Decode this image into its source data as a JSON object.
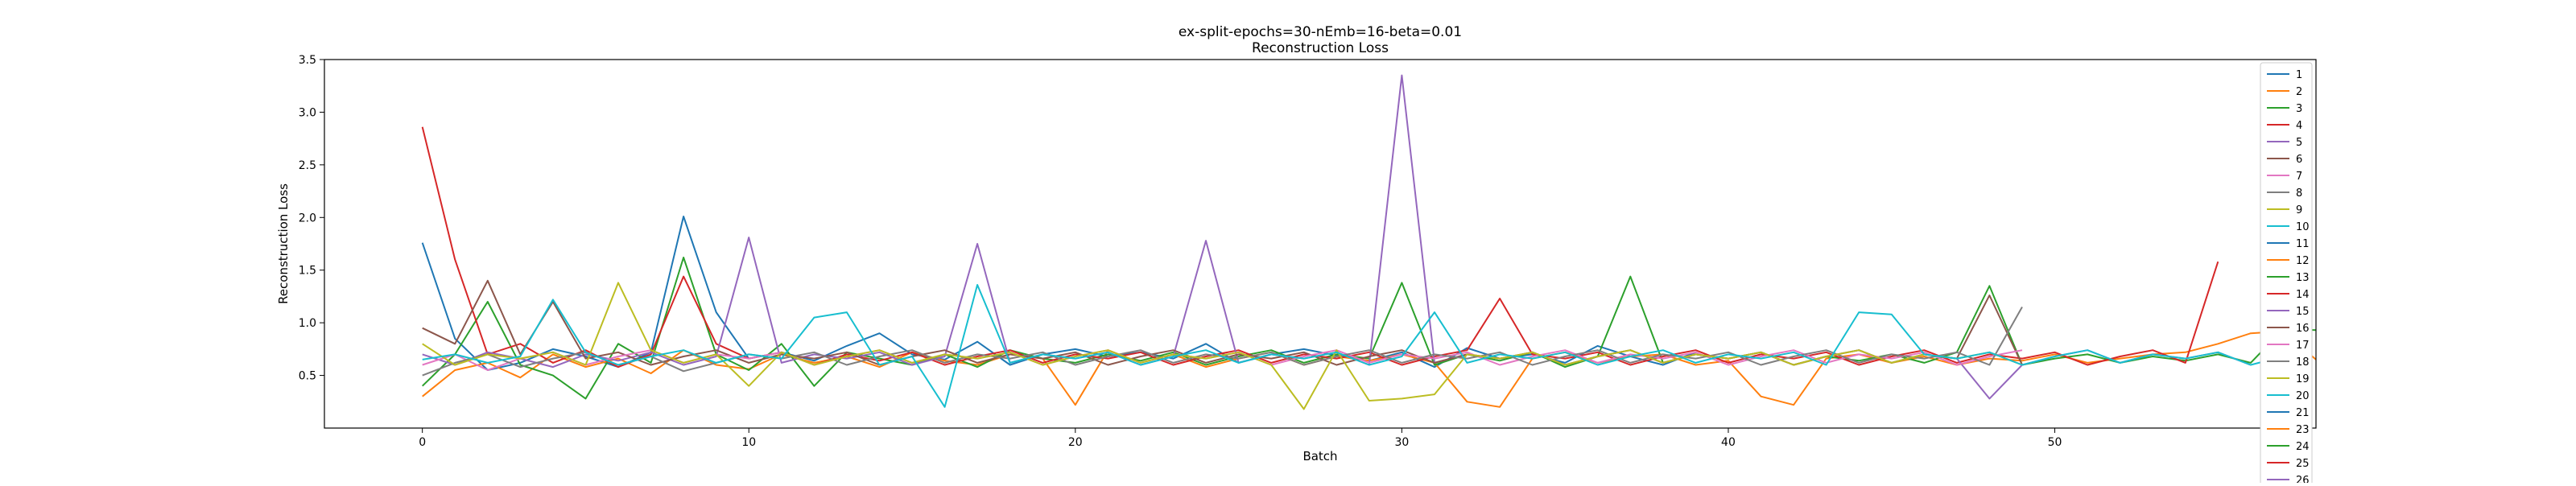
{
  "chart_data": {
    "type": "line",
    "title": "ex-split-epochs=30-nEmb=16-beta=0.01",
    "subtitle": "Reconstruction Loss",
    "xlabel": "Batch",
    "ylabel": "Reconstruction Loss",
    "xlim": [
      -3,
      58
    ],
    "ylim": [
      0.0,
      3.5
    ],
    "xticks": [
      0,
      10,
      20,
      30,
      40,
      50
    ],
    "yticks": [
      0.5,
      1.0,
      1.5,
      2.0,
      2.5,
      3.0,
      3.5
    ],
    "grid": false,
    "legend_position": "right",
    "series": [
      {
        "name": "1",
        "color": "#1f77b4",
        "values": [
          1.76,
          0.85,
          0.55,
          0.62,
          0.75,
          0.68,
          0.58,
          0.72,
          2.01,
          1.1,
          0.66,
          0.72,
          0.64,
          0.78,
          0.9,
          0.7,
          0.65,
          0.82,
          0.6,
          0.7,
          0.75,
          0.68,
          0.72,
          0.66,
          0.8,
          0.62,
          0.7,
          0.75,
          0.69,
          0.64,
          0.72,
          0.58,
          0.76,
          0.66,
          0.7,
          0.62,
          0.78,
          0.68,
          0.6,
          0.72
        ]
      },
      {
        "name": "2",
        "color": "#ff7f0e",
        "values": [
          0.3,
          0.55,
          0.62,
          0.48,
          0.7,
          0.58,
          0.66,
          0.52,
          0.74,
          0.6,
          0.56,
          0.7,
          0.62,
          0.68,
          0.58,
          0.72,
          0.64,
          0.6,
          0.7,
          0.66,
          0.22,
          0.74,
          0.62,
          0.7,
          0.58,
          0.66,
          0.72,
          0.6,
          0.68,
          0.64,
          0.7,
          0.62,
          0.25,
          0.2,
          0.66,
          0.72,
          0.62,
          0.68,
          0.7,
          0.6,
          0.64,
          0.3,
          0.22,
          0.66,
          0.7,
          0.62,
          0.68,
          0.6,
          0.66,
          0.64,
          0.7,
          0.62,
          0.66,
          0.7,
          0.72,
          0.8,
          0.9,
          0.92,
          0.65
        ]
      },
      {
        "name": "3",
        "color": "#2ca02c",
        "values": [
          0.4,
          0.7,
          1.2,
          0.6,
          0.5,
          0.28,
          0.8,
          0.62,
          1.62,
          0.7,
          0.55,
          0.8,
          0.4,
          0.72,
          0.66,
          0.6,
          0.7,
          0.58,
          0.74,
          0.66,
          0.62,
          0.7,
          0.64,
          0.72,
          0.6,
          0.68,
          0.74,
          0.62,
          0.7,
          0.66,
          1.38,
          0.6,
          0.7,
          0.64,
          0.72,
          0.58,
          0.68,
          1.44,
          0.62,
          0.7,
          0.66,
          0.72,
          0.6,
          0.68,
          0.64,
          0.7,
          0.62,
          0.72,
          1.35,
          0.6,
          0.66,
          0.7,
          0.62,
          0.68,
          0.64,
          0.7,
          0.62,
          0.94,
          0.93
        ]
      },
      {
        "name": "4",
        "color": "#d62728",
        "values": [
          2.86,
          1.6,
          0.7,
          0.8,
          0.62,
          0.74,
          0.58,
          0.7,
          1.44,
          0.8,
          0.66,
          0.72,
          0.6,
          0.7,
          0.64,
          0.72,
          0.6,
          0.68,
          0.74,
          0.62,
          0.7,
          0.66,
          0.72,
          0.6,
          0.68,
          0.74,
          0.62,
          0.7,
          0.66,
          0.72,
          0.6,
          0.68,
          0.74,
          1.23,
          0.7,
          0.66,
          0.72,
          0.6,
          0.68,
          0.74,
          0.62,
          0.7,
          0.66,
          0.72,
          0.6,
          0.68,
          0.74,
          0.62,
          0.7,
          0.66,
          0.72,
          0.6,
          0.68,
          0.74,
          0.62,
          1.58
        ]
      },
      {
        "name": "5",
        "color": "#9467bd",
        "values": [
          0.7,
          0.6,
          0.72,
          0.66,
          0.58,
          0.7,
          0.64,
          0.72,
          0.6,
          0.68,
          1.81,
          0.62,
          0.7,
          0.66,
          0.72,
          0.6,
          0.68,
          1.75,
          0.62,
          0.7,
          0.66,
          0.72,
          0.6,
          0.68,
          1.78,
          0.62,
          0.7,
          0.66,
          0.72,
          0.6,
          3.35,
          0.62,
          0.7,
          0.66,
          0.72,
          0.6,
          0.68,
          0.74,
          0.62,
          0.7,
          0.66,
          0.72,
          0.6,
          0.68,
          0.74,
          0.62,
          0.7,
          0.66,
          0.28,
          0.6,
          0.68,
          0.74,
          0.62,
          0.7,
          0.66,
          0.72,
          0.6
        ]
      },
      {
        "name": "6",
        "color": "#8c564b",
        "values": [
          0.95,
          0.8,
          1.4,
          0.7,
          1.2,
          0.66,
          0.72,
          0.6,
          0.68,
          0.74,
          0.62,
          0.7,
          0.66,
          0.72,
          0.6,
          0.68,
          0.74,
          0.62,
          0.7,
          0.66,
          0.72,
          0.6,
          0.68,
          0.74,
          0.62,
          0.7,
          0.66,
          0.72,
          0.6,
          0.68,
          0.74,
          0.62,
          0.7,
          0.66,
          0.72,
          0.6,
          0.68,
          0.74,
          0.62,
          0.7,
          0.66,
          0.72,
          0.6,
          0.68,
          0.74,
          0.62,
          0.7,
          0.66,
          1.26,
          0.6
        ]
      },
      {
        "name": "7",
        "color": "#e377c2",
        "values": [
          0.6,
          0.7,
          0.55,
          0.66,
          0.72,
          0.6,
          0.68,
          0.74,
          0.62,
          0.7,
          0.66,
          0.72,
          0.6,
          0.68,
          0.74,
          0.62,
          0.7,
          0.66,
          0.72,
          0.6,
          0.68,
          0.74,
          0.62,
          0.7,
          0.66,
          0.72,
          0.6,
          0.68,
          0.74,
          0.62,
          0.7,
          0.66,
          0.72,
          0.6,
          0.68,
          0.74,
          0.62,
          0.7,
          0.66,
          0.72,
          0.6,
          0.68,
          0.74,
          0.62,
          0.7,
          0.66,
          0.72,
          0.6,
          0.68,
          0.74
        ]
      },
      {
        "name": "8",
        "color": "#7f7f7f",
        "values": [
          0.5,
          0.62,
          0.7,
          0.58,
          0.66,
          0.72,
          0.6,
          0.68,
          0.54,
          0.62,
          0.7,
          0.66,
          0.72,
          0.6,
          0.68,
          0.74,
          0.62,
          0.7,
          0.66,
          0.72,
          0.6,
          0.68,
          0.74,
          0.62,
          0.7,
          0.66,
          0.72,
          0.6,
          0.68,
          0.74,
          0.62,
          0.7,
          0.66,
          0.72,
          0.6,
          0.68,
          0.74,
          0.62,
          0.7,
          0.66,
          0.72,
          0.6,
          0.68,
          0.74,
          0.62,
          0.7,
          0.66,
          0.72,
          0.6,
          1.15
        ]
      },
      {
        "name": "9",
        "color": "#bcbd22",
        "values": [
          0.8,
          0.6,
          0.7,
          0.66,
          0.72,
          0.6,
          1.38,
          0.74,
          0.62,
          0.7,
          0.4,
          0.72,
          0.6,
          0.68,
          0.74,
          0.62,
          0.7,
          0.66,
          0.72,
          0.6,
          0.68,
          0.74,
          0.62,
          0.7,
          0.66,
          0.72,
          0.6,
          0.18,
          0.74,
          0.26,
          0.28,
          0.32,
          0.7,
          0.66,
          0.72,
          0.6,
          0.68,
          0.74,
          0.62,
          0.7,
          0.66,
          0.72,
          0.6,
          0.68,
          0.74,
          0.62,
          0.7,
          0.66,
          0.72,
          0.6
        ]
      },
      {
        "name": "10",
        "color": "#17becf",
        "values": [
          0.65,
          0.7,
          0.62,
          0.68,
          1.22,
          0.72,
          0.6,
          0.68,
          0.74,
          0.62,
          0.7,
          0.66,
          1.05,
          1.1,
          0.6,
          0.68,
          0.2,
          1.36,
          0.62,
          0.7,
          0.66,
          0.72,
          0.6,
          0.68,
          0.74,
          0.62,
          0.7,
          0.66,
          0.72,
          0.6,
          0.68,
          1.1,
          0.62,
          0.7,
          0.66,
          0.72,
          0.6,
          0.68,
          0.74,
          0.62,
          0.7,
          0.66,
          0.72,
          0.6,
          1.1,
          1.08,
          0.7,
          0.66,
          0.72,
          0.6,
          0.68,
          0.74,
          0.62,
          0.7,
          0.66,
          0.72,
          0.6,
          0.68
        ]
      }
    ]
  },
  "legend_names": [
    "1",
    "2",
    "3",
    "4",
    "5",
    "6",
    "7",
    "8",
    "9",
    "10",
    "11",
    "12",
    "13",
    "14",
    "15",
    "16",
    "17",
    "18",
    "19",
    "20",
    "21",
    "23",
    "24",
    "25",
    "26"
  ]
}
